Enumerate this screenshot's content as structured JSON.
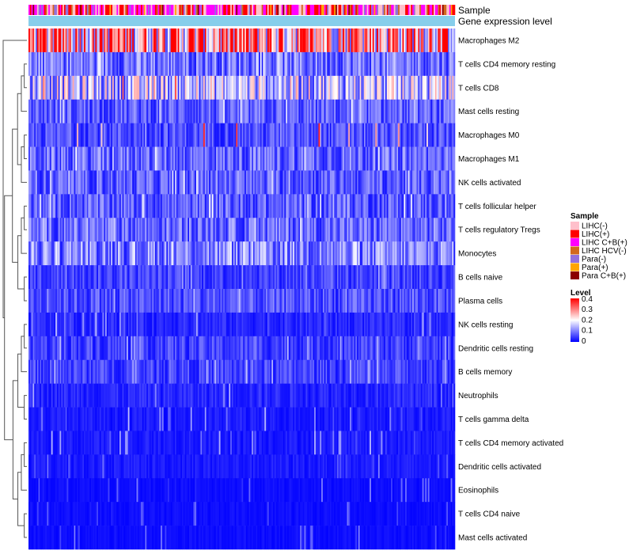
{
  "chart_data": {
    "type": "heatmap",
    "title": "",
    "annotation_rows": [
      "Sample",
      "Gene expression level"
    ],
    "rows": [
      "Macrophages M2",
      "T cells CD4 memory resting",
      "T cells CD8",
      "Mast cells resting",
      "Macrophages M0",
      "Macrophages M1",
      "NK cells activated",
      "T cells follicular helper",
      "T cells regulatory  Tregs",
      "Monocytes",
      "B cells naive",
      "Plasma cells",
      "NK cells resting",
      "Dendritic cells resting",
      "B cells memory",
      "Neutrophils",
      "T cells gamma delta",
      "T cells CD4 memory activated",
      "Dendritic cells activated",
      "Eosinophils",
      "T cells CD4 naive",
      "Mast cells activated"
    ],
    "row_mean_level": [
      0.28,
      0.09,
      0.15,
      0.07,
      0.06,
      0.08,
      0.07,
      0.07,
      0.08,
      0.1,
      0.05,
      0.06,
      0.03,
      0.05,
      0.05,
      0.03,
      0.02,
      0.02,
      0.02,
      0.01,
      0.01,
      0.01
    ],
    "row_max_level": [
      0.4,
      0.2,
      0.35,
      0.2,
      0.4,
      0.2,
      0.2,
      0.2,
      0.2,
      0.2,
      0.15,
      0.15,
      0.15,
      0.15,
      0.15,
      0.15,
      0.15,
      0.15,
      0.1,
      0.1,
      0.1,
      0.1
    ],
    "n_columns": 300,
    "color_scale": {
      "min": 0,
      "max": 0.4,
      "colors": [
        "#0000ff",
        "#ffffff",
        "#ff0000"
      ],
      "ticks": [
        "0.4",
        "0.3",
        "0.2",
        "0.1",
        "0"
      ]
    },
    "legend_sample": {
      "title": "Sample",
      "entries": [
        {
          "label": "LIHC(-)",
          "color": "#ffc0cb"
        },
        {
          "label": "LIHC(+)",
          "color": "#ff0000"
        },
        {
          "label": "LIHC C+B(+)",
          "color": "#ff00ff"
        },
        {
          "label": "LIHC HCV(-)",
          "color": "#d2691e"
        },
        {
          "label": "Para(-)",
          "color": "#9370db"
        },
        {
          "label": "Para(+)",
          "color": "#ffa500"
        },
        {
          "label": "Para C+B(+)",
          "color": "#8b0000"
        }
      ]
    },
    "legend_level": {
      "title": "Level"
    },
    "gene_expression_color": "#87ceeb"
  }
}
